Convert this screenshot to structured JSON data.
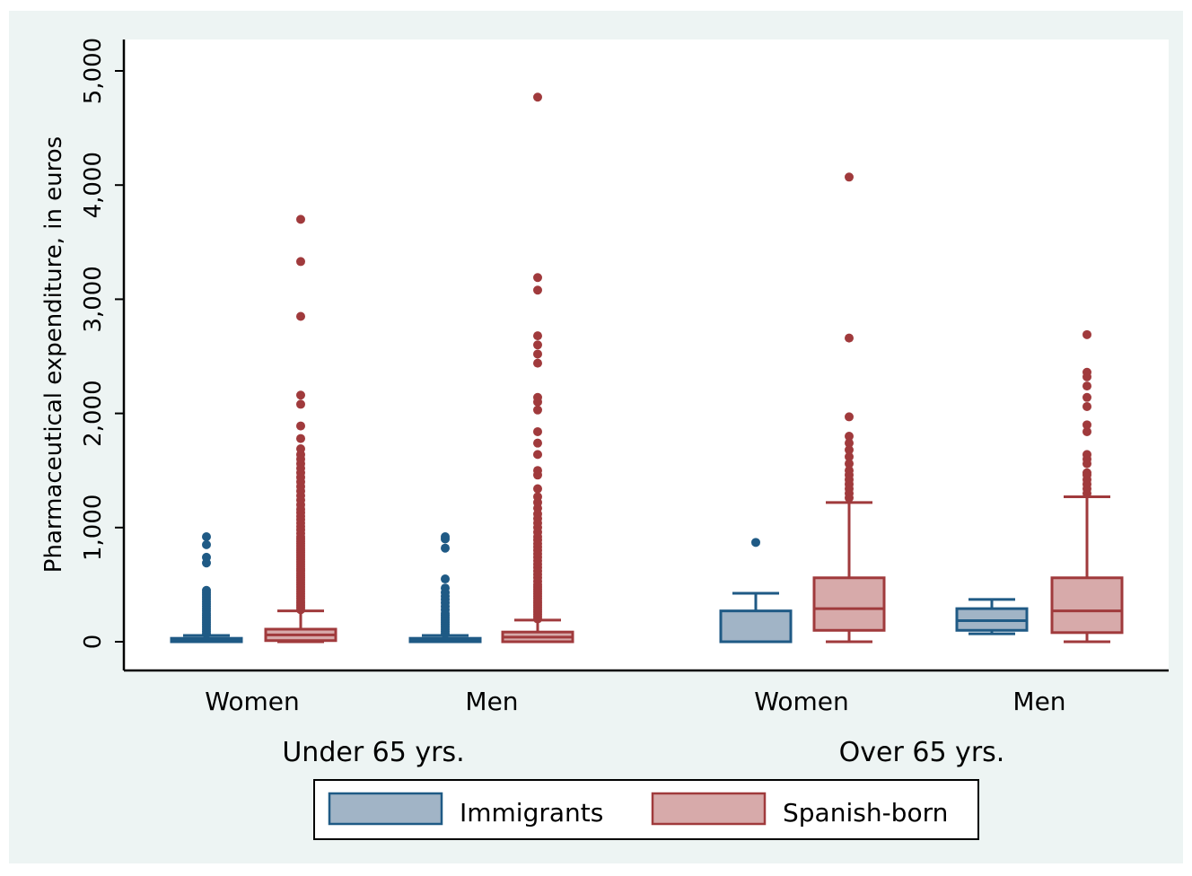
{
  "chart_data": {
    "type": "box",
    "ylabel": "Pharmaceutical expenditure, in euros",
    "xlabel": "",
    "ylim": [
      -250,
      5300
    ],
    "yticks": [
      0,
      1000,
      2000,
      3000,
      4000,
      5000
    ],
    "yticklabels": [
      "0",
      "1,000",
      "2,000",
      "3,000",
      "4,000",
      "5,000"
    ],
    "groups": [
      {
        "label": "Under 65 yrs.",
        "categories": [
          "Women",
          "Men"
        ]
      },
      {
        "label": "Over 65 yrs.",
        "categories": [
          "Women",
          "Men"
        ]
      }
    ],
    "legend": {
      "position": "bottom"
    },
    "series": [
      {
        "name": "Immigrants",
        "fill": "#a1b4c6",
        "stroke": "#1f5a85",
        "boxes": [
          {
            "group": "Under 65 yrs.",
            "category": "Women",
            "min": 0,
            "q1": 0,
            "median": 10,
            "q3": 30,
            "max": 55,
            "outliers": [
              70,
              90,
              110,
              130,
              150,
              170,
              190,
              210,
              230,
              250,
              270,
              290,
              310,
              330,
              350,
              370,
              390,
              410,
              430,
              450,
              690,
              740,
              850,
              920
            ]
          },
          {
            "group": "Under 65 yrs.",
            "category": "Men",
            "min": 0,
            "q1": 0,
            "median": 10,
            "q3": 30,
            "max": 55,
            "outliers": [
              70,
              90,
              110,
              130,
              150,
              170,
              190,
              210,
              230,
              250,
              280,
              310,
              340,
              370,
              400,
              430,
              470,
              550,
              820,
              900,
              920
            ]
          },
          {
            "group": "Over 65 yrs.",
            "category": "Women",
            "min": 0,
            "q1": 0,
            "median": 0,
            "q3": 270,
            "max": 425,
            "outliers": [
              870
            ]
          },
          {
            "group": "Over 65 yrs.",
            "category": "Men",
            "min": 70,
            "q1": 100,
            "median": 185,
            "q3": 290,
            "max": 370,
            "outliers": []
          }
        ]
      },
      {
        "name": "Spanish-born",
        "fill": "#d7aaaa",
        "stroke": "#a03a3c",
        "boxes": [
          {
            "group": "Under 65 yrs.",
            "category": "Women",
            "min": 0,
            "q1": 10,
            "median": 60,
            "q3": 110,
            "max": 270,
            "outliers": [
              280,
              300,
              320,
              340,
              360,
              380,
              400,
              420,
              440,
              460,
              480,
              500,
              520,
              540,
              560,
              580,
              600,
              620,
              640,
              660,
              680,
              700,
              720,
              740,
              760,
              780,
              800,
              820,
              840,
              860,
              880,
              900,
              920,
              950,
              980,
              1010,
              1040,
              1070,
              1100,
              1130,
              1160,
              1200,
              1240,
              1280,
              1320,
              1360,
              1400,
              1440,
              1480,
              1520,
              1560,
              1600,
              1640,
              1690,
              1780,
              1890,
              2080,
              2160,
              2850,
              3330,
              3700
            ]
          },
          {
            "group": "Under 65 yrs.",
            "category": "Men",
            "min": 0,
            "q1": 0,
            "median": 40,
            "q3": 85,
            "max": 190,
            "outliers": [
              200,
              220,
              240,
              260,
              280,
              300,
              320,
              340,
              360,
              380,
              400,
              420,
              440,
              460,
              480,
              500,
              530,
              560,
              590,
              620,
              650,
              680,
              710,
              740,
              770,
              800,
              830,
              860,
              890,
              920,
              960,
              1000,
              1040,
              1080,
              1120,
              1170,
              1220,
              1270,
              1340,
              1460,
              1500,
              1640,
              1740,
              1840,
              2030,
              2100,
              2140,
              2440,
              2520,
              2600,
              2680,
              3080,
              3190,
              4770
            ]
          },
          {
            "group": "Over 65 yrs.",
            "category": "Women",
            "min": 0,
            "q1": 100,
            "median": 290,
            "q3": 560,
            "max": 1220,
            "outliers": [
              1260,
              1300,
              1340,
              1380,
              1420,
              1460,
              1500,
              1560,
              1620,
              1680,
              1740,
              1800,
              1970,
              2660,
              4070
            ]
          },
          {
            "group": "Over 65 yrs.",
            "category": "Men",
            "min": 0,
            "q1": 80,
            "median": 270,
            "q3": 560,
            "max": 1270,
            "outliers": [
              1300,
              1340,
              1380,
              1420,
              1460,
              1480,
              1560,
              1600,
              1640,
              1840,
              1900,
              2060,
              2140,
              2240,
              2320,
              2360,
              2690
            ]
          }
        ]
      }
    ]
  }
}
